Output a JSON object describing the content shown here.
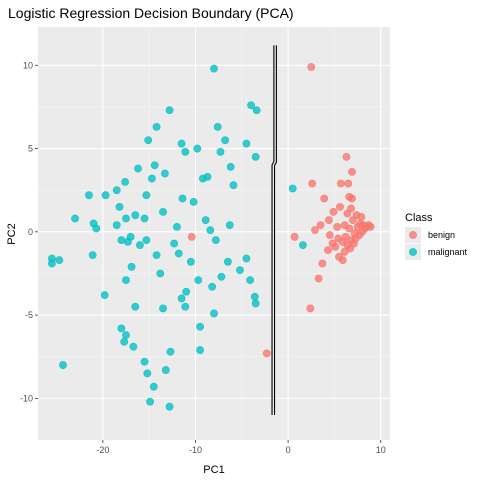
{
  "chart_data": {
    "type": "scatter",
    "title": "Logistic Regression Decision Boundary (PCA)",
    "xlabel": "PC1",
    "ylabel": "PC2",
    "xlim": [
      -27,
      11
    ],
    "ylim": [
      -12.5,
      12.3
    ],
    "x_ticks": [
      -20,
      -10,
      0,
      10
    ],
    "y_ticks": [
      -10,
      -5,
      0,
      5,
      10
    ],
    "x_tick_labels": [
      "-20",
      "-10",
      "0",
      "10"
    ],
    "y_tick_labels": [
      "-10",
      "-5",
      "0",
      "5",
      "10"
    ],
    "grid": true,
    "panel_background": "#ebebeb",
    "legend": {
      "title": "Class",
      "position": "right"
    },
    "series": [
      {
        "name": "benign",
        "color": "#F8766D",
        "points": [
          [
            2.5,
            9.9
          ],
          [
            -10.4,
            -0.3
          ],
          [
            -2.3,
            -7.3
          ],
          [
            2.4,
            -4.6
          ],
          [
            2.6,
            2.9
          ],
          [
            3.9,
            2.0
          ],
          [
            3.5,
            0.4
          ],
          [
            2.9,
            0.1
          ],
          [
            0.7,
            -0.3
          ],
          [
            4.4,
            0.7
          ],
          [
            4.3,
            -1.1
          ],
          [
            3.7,
            -1.9
          ],
          [
            3.3,
            -2.8
          ],
          [
            4.5,
            -0.2
          ],
          [
            5.3,
            0.3
          ],
          [
            5.1,
            -0.9
          ],
          [
            5.5,
            -1.5
          ],
          [
            5.9,
            -1.7
          ],
          [
            5.6,
            1.5
          ],
          [
            4.9,
            1.2
          ],
          [
            6.1,
            0.4
          ],
          [
            6.4,
            1.1
          ],
          [
            6.6,
            2.1
          ],
          [
            6.5,
            2.9
          ],
          [
            5.7,
            2.9
          ],
          [
            6.9,
            3.6
          ],
          [
            6.9,
            2.0
          ],
          [
            6.3,
            4.5
          ],
          [
            6.2,
            -0.3
          ],
          [
            6.8,
            -0.5
          ],
          [
            7.2,
            -0.1
          ],
          [
            6.6,
            0.2
          ],
          [
            7.0,
            0.7
          ],
          [
            7.5,
            0.3
          ],
          [
            7.8,
            0.5
          ],
          [
            8.1,
            0.4
          ],
          [
            8.4,
            0.3
          ],
          [
            8.7,
            0.4
          ],
          [
            8.9,
            0.3
          ],
          [
            7.1,
            -0.7
          ],
          [
            6.7,
            -1.0
          ],
          [
            7.3,
            -0.4
          ],
          [
            7.7,
            -0.2
          ],
          [
            8.0,
            0.0
          ],
          [
            8.3,
            0.2
          ],
          [
            6.4,
            -0.8
          ],
          [
            5.9,
            -0.6
          ],
          [
            6.1,
            -1.2
          ],
          [
            7.4,
            1.0
          ],
          [
            7.9,
            0.9
          ],
          [
            6.8,
            1.4
          ],
          [
            5.4,
            -0.4
          ],
          [
            4.8,
            -0.7
          ]
        ]
      },
      {
        "name": "malignant",
        "color": "#00BFC4",
        "points": [
          [
            -8.0,
            9.8
          ],
          [
            -7.6,
            6.3
          ],
          [
            -7.3,
            4.8
          ],
          [
            -6.8,
            5.5
          ],
          [
            -6.2,
            3.9
          ],
          [
            -5.9,
            2.8
          ],
          [
            -4.0,
            7.6
          ],
          [
            -3.4,
            7.3
          ],
          [
            -4.5,
            5.3
          ],
          [
            -3.5,
            4.5
          ],
          [
            -12.8,
            7.3
          ],
          [
            -11.5,
            5.3
          ],
          [
            -11.1,
            4.8
          ],
          [
            -9.8,
            5.0
          ],
          [
            -14.2,
            6.3
          ],
          [
            -15.1,
            5.5
          ],
          [
            -9.2,
            3.2
          ],
          [
            -8.7,
            3.3
          ],
          [
            -6.3,
            0.4
          ],
          [
            -6.5,
            -1.8
          ],
          [
            -7.2,
            -2.7
          ],
          [
            -5.2,
            -2.3
          ],
          [
            -4.5,
            -1.6
          ],
          [
            -4.1,
            -2.9
          ],
          [
            -3.6,
            -3.9
          ],
          [
            -3.5,
            -4.3
          ],
          [
            -8.2,
            -3.3
          ],
          [
            -8.0,
            -4.9
          ],
          [
            -9.5,
            -5.7
          ],
          [
            -9.7,
            -2.9
          ],
          [
            -11.0,
            -3.6
          ],
          [
            -10.5,
            -1.8
          ],
          [
            -11.8,
            -1.3
          ],
          [
            -12.0,
            0.3
          ],
          [
            -12.3,
            -0.7
          ],
          [
            -11.4,
            2.0
          ],
          [
            -10.2,
            1.8
          ],
          [
            -8.9,
            0.7
          ],
          [
            -8.4,
            0.1
          ],
          [
            -7.8,
            -0.5
          ],
          [
            -13.3,
            3.5
          ],
          [
            -13.5,
            1.2
          ],
          [
            -14.2,
            -1.4
          ],
          [
            -14.7,
            3.2
          ],
          [
            -15.3,
            2.2
          ],
          [
            -15.5,
            0.8
          ],
          [
            -15.3,
            -0.5
          ],
          [
            -16.2,
            3.8
          ],
          [
            -16.5,
            1.0
          ],
          [
            -17.0,
            -0.3
          ],
          [
            -17.3,
            -0.6
          ],
          [
            -16.9,
            -2.1
          ],
          [
            -17.5,
            -2.9
          ],
          [
            -18.0,
            -0.5
          ],
          [
            -18.5,
            0.4
          ],
          [
            -17.5,
            0.8
          ],
          [
            -18.2,
            1.5
          ],
          [
            -18.5,
            2.5
          ],
          [
            -17.6,
            3.0
          ],
          [
            -19.7,
            2.2
          ],
          [
            -20.7,
            0.2
          ],
          [
            -21.0,
            0.5
          ],
          [
            -21.5,
            2.2
          ],
          [
            -21.1,
            -1.4
          ],
          [
            -19.8,
            -3.8
          ],
          [
            -18.0,
            -5.8
          ],
          [
            -17.5,
            -6.2
          ],
          [
            -17.7,
            -6.6
          ],
          [
            -16.7,
            -6.9
          ],
          [
            -15.5,
            -7.8
          ],
          [
            -16.5,
            -4.5
          ],
          [
            -15.2,
            -8.5
          ],
          [
            -14.5,
            -9.3
          ],
          [
            -13.2,
            -8.3
          ],
          [
            -12.7,
            -7.2
          ],
          [
            -11.5,
            -4.0
          ],
          [
            -11.1,
            -4.5
          ],
          [
            -9.5,
            -7.1
          ],
          [
            -14.9,
            -10.2
          ],
          [
            -12.8,
            -10.5
          ],
          [
            -13.5,
            -4.6
          ],
          [
            -23.0,
            0.8
          ],
          [
            -25.5,
            -1.6
          ],
          [
            -25.5,
            -1.9
          ],
          [
            -24.7,
            -1.7
          ],
          [
            -24.3,
            -8.0
          ],
          [
            -16.0,
            -0.8
          ],
          [
            -13.8,
            -2.5
          ],
          [
            -14.4,
            4.0
          ],
          [
            1.6,
            -0.8
          ],
          [
            0.5,
            2.6
          ]
        ]
      }
    ],
    "decision_boundary": {
      "color": "#000000",
      "points": [
        [
          -1.4,
          11.2
        ],
        [
          -1.4,
          4.2
        ],
        [
          -1.6,
          4.0
        ],
        [
          -1.6,
          -11.0
        ]
      ]
    }
  }
}
